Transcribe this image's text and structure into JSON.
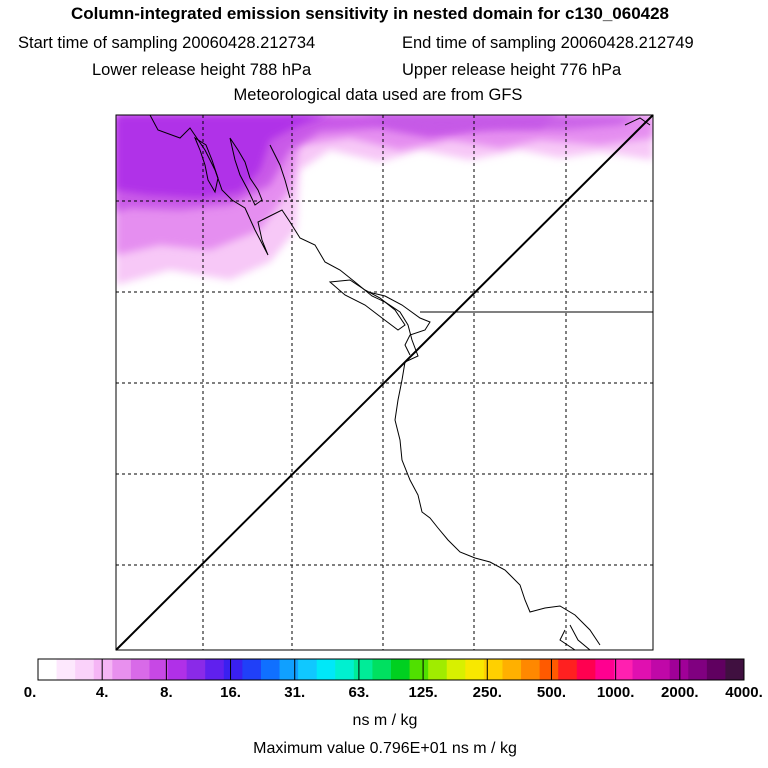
{
  "header": {
    "title": "Column-integrated emission sensitivity in nested domain for c130_060428",
    "start_time": "Start time of sampling 20060428.212734",
    "end_time": "End time of sampling 20060428.212749",
    "lower_release": "Lower release height  788 hPa",
    "upper_release": "Upper release height  776 hPa",
    "met_data": "Meteorological data used are from GFS"
  },
  "legend": {
    "labels": [
      "0.",
      "4.",
      "8.",
      "16.",
      "31.",
      "63.",
      "125.",
      "250.",
      "500.",
      "1000.",
      "2000.",
      "4000."
    ],
    "colors": [
      "#ffffff",
      "#fde8fd",
      "#fad2fa",
      "#f5b5f5",
      "#e890ee",
      "#d86ae8",
      "#c748e5",
      "#b030e8",
      "#8a2ae8",
      "#6020ee",
      "#3a20f0",
      "#2040f8",
      "#1070ff",
      "#10a0ff",
      "#10c8ff",
      "#00e8f8",
      "#00f0d0",
      "#00ec98",
      "#00e060",
      "#00d020",
      "#50e000",
      "#a0ec00",
      "#d8f000",
      "#f8e800",
      "#ffd000",
      "#ffb000",
      "#ff8800",
      "#ff5a00",
      "#ff2020",
      "#ff0050",
      "#ff0090",
      "#ff20b0",
      "#e010b0",
      "#c008a8",
      "#a00098",
      "#800080",
      "#600060",
      "#401040"
    ],
    "units": "ns m / kg",
    "maximum": "Maximum value  0.796E+01 ns m / kg"
  },
  "map": {
    "plume_color": "#b030e8",
    "coastline_color": "#000000"
  }
}
